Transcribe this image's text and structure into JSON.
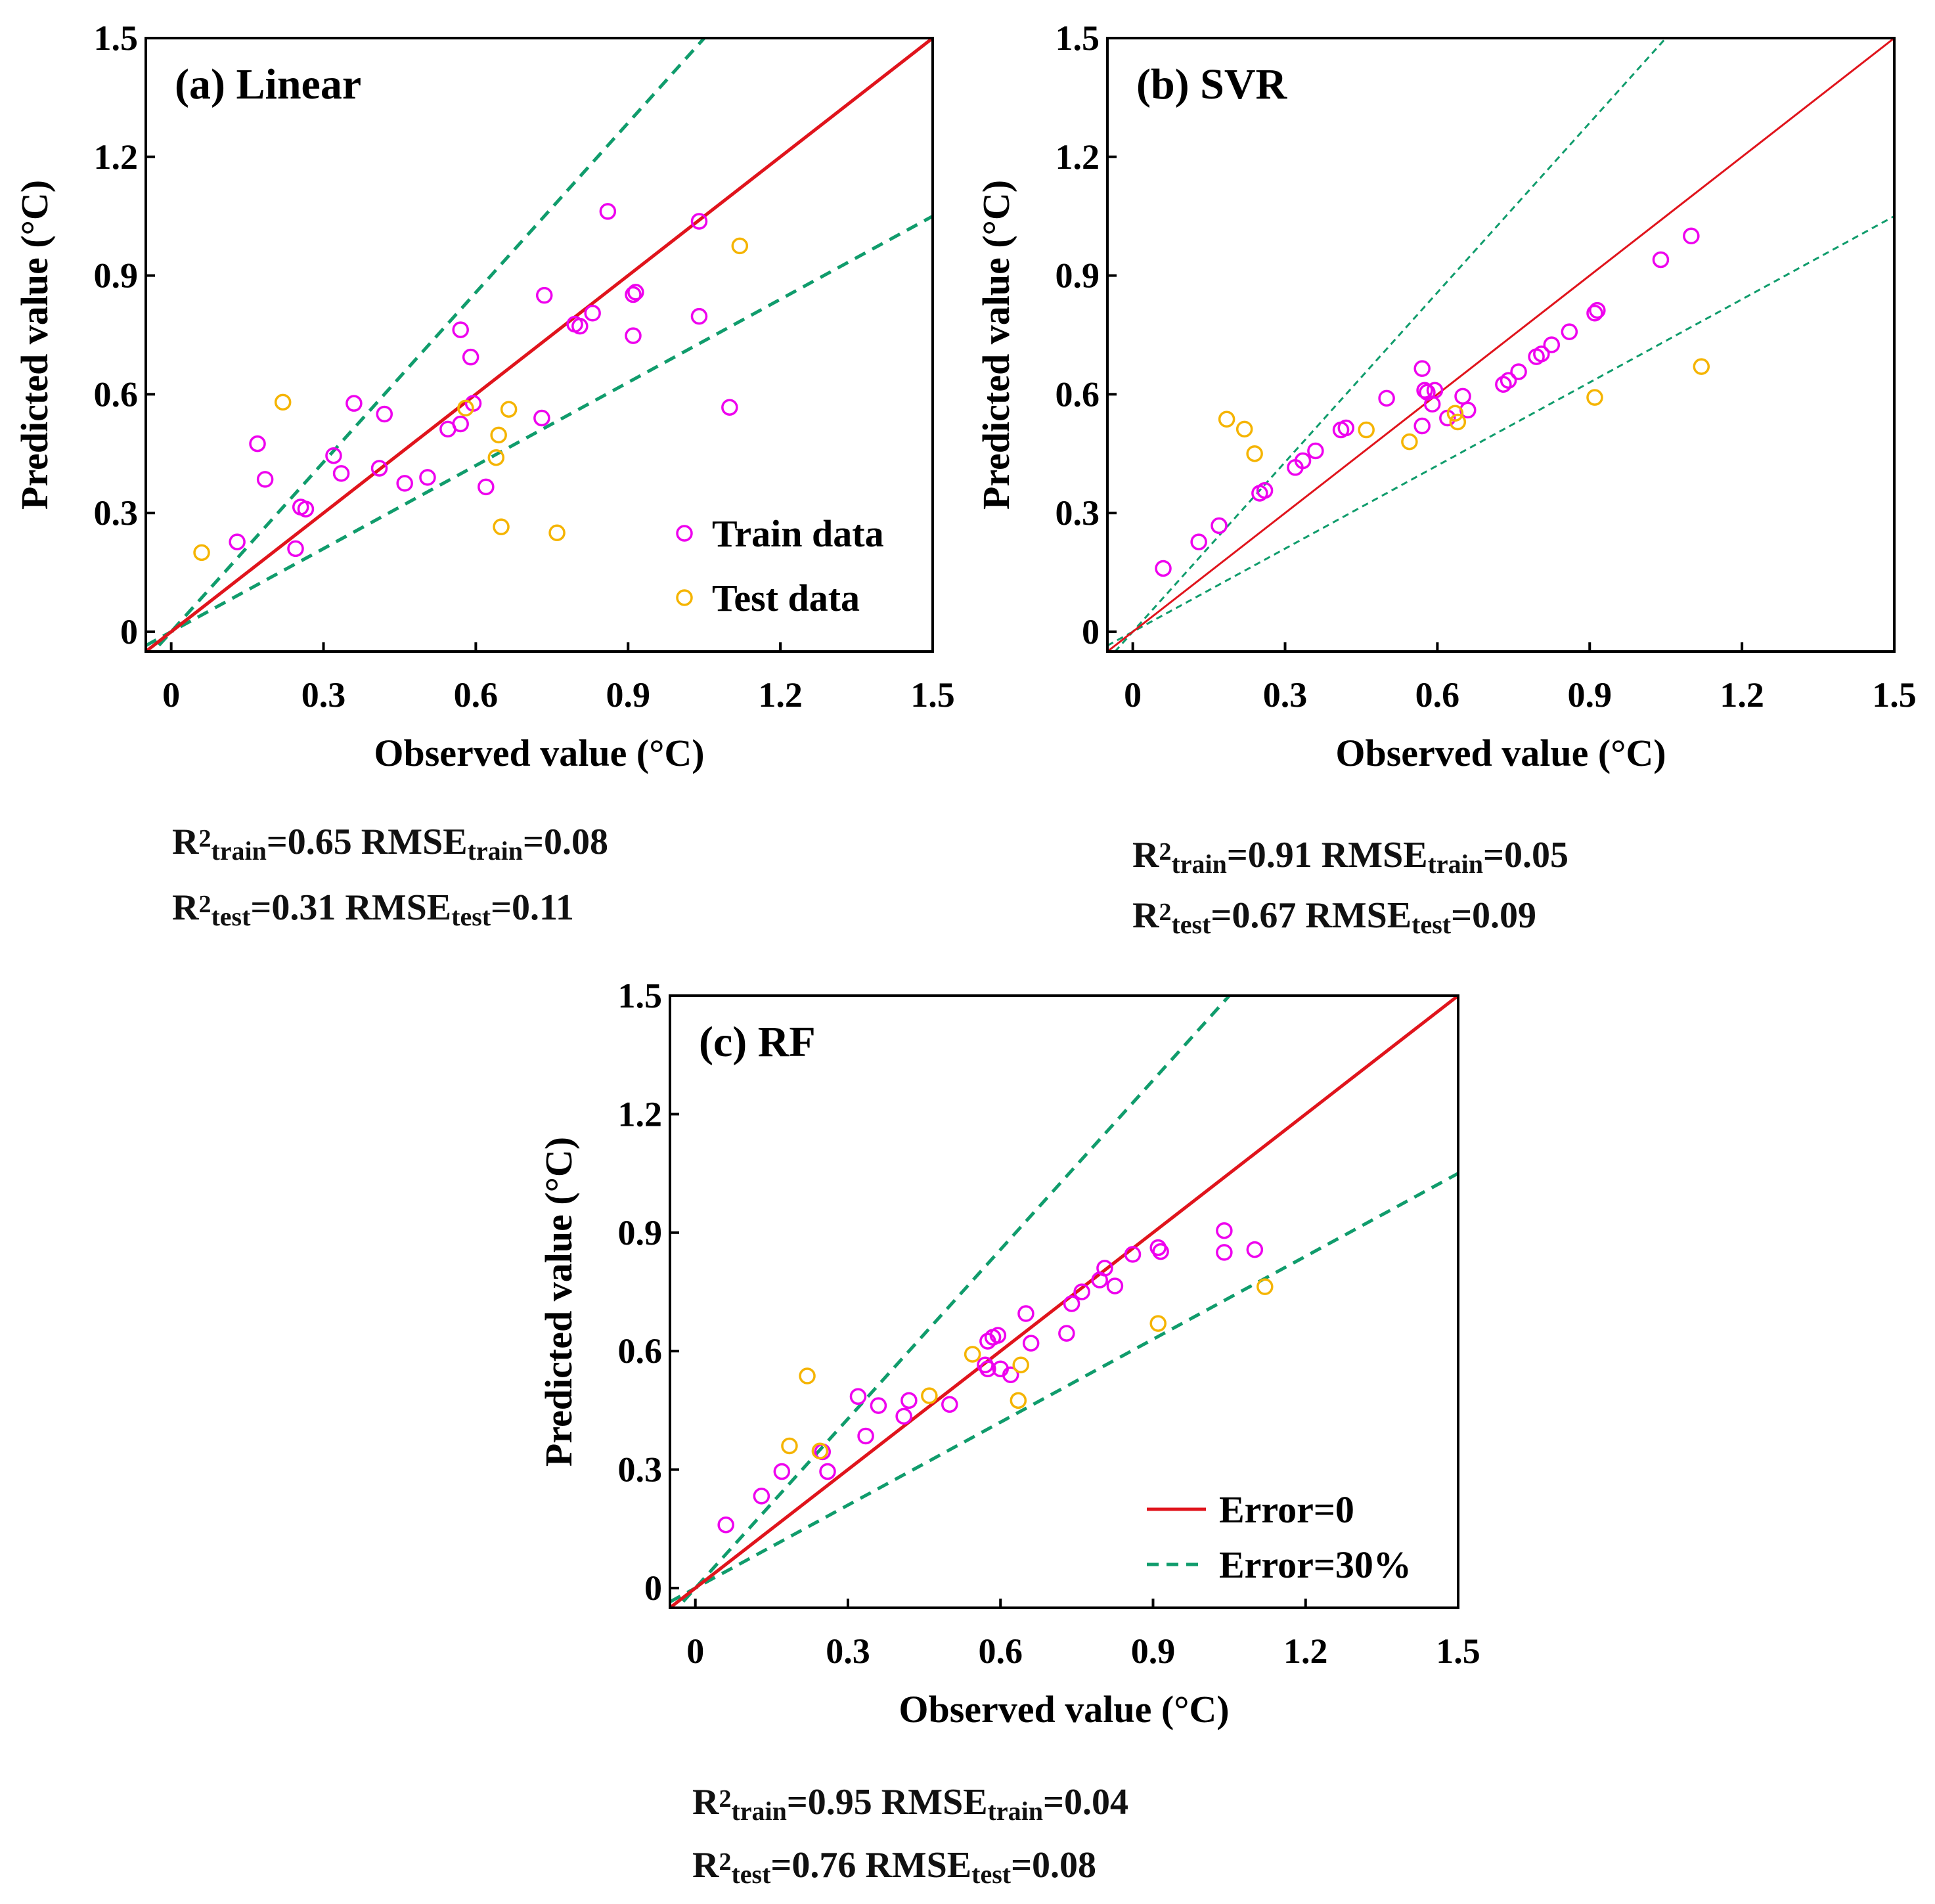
{
  "colors": {
    "train": "#ee00ee",
    "test": "#f5b400",
    "ideal_line": "#e0141c",
    "error_lines": "#109c6c",
    "axis": "#000000"
  },
  "legend_train": "Train data",
  "legend_test": "Test data",
  "legend_error0": "Error=0",
  "legend_error30": "Error=30%",
  "chart_data": [
    {
      "type": "scatter",
      "title": "(a) Linear",
      "xlabel": "Observed value (°C)",
      "ylabel": "Predicted value (°C)",
      "xlim": [
        -0.05,
        1.5
      ],
      "ylim": [
        -0.05,
        1.5
      ],
      "xticks": [
        "0",
        "0.3",
        "0.6",
        "0.9",
        "1.2",
        "1.5"
      ],
      "yticks": [
        "0",
        "0.3",
        "0.6",
        "0.9",
        "1.2",
        "1.5"
      ],
      "reference_lines": {
        "ideal_slope": 1,
        "upper_slope": 1.42857,
        "lower_slope": 0.7
      },
      "series": [
        {
          "name": "Train data",
          "color": "#ee00ee",
          "points": [
            [
              0.17,
              0.475
            ],
            [
              0.185,
              0.385
            ],
            [
              0.13,
              0.227
            ],
            [
              0.245,
              0.21
            ],
            [
              0.255,
              0.315
            ],
            [
              0.265,
              0.31
            ],
            [
              0.32,
              0.445
            ],
            [
              0.335,
              0.4
            ],
            [
              0.36,
              0.577
            ],
            [
              0.41,
              0.413
            ],
            [
              0.42,
              0.55
            ],
            [
              0.46,
              0.375
            ],
            [
              0.505,
              0.39
            ],
            [
              0.545,
              0.512
            ],
            [
              0.57,
              0.525
            ],
            [
              0.57,
              0.763
            ],
            [
              0.59,
              0.694
            ],
            [
              0.595,
              0.577
            ],
            [
              0.62,
              0.366
            ],
            [
              0.73,
              0.54
            ],
            [
              0.735,
              0.85
            ],
            [
              0.795,
              0.777
            ],
            [
              0.805,
              0.772
            ],
            [
              0.83,
              0.805
            ],
            [
              0.86,
              1.062
            ],
            [
              0.91,
              0.748
            ],
            [
              0.91,
              0.852
            ],
            [
              0.915,
              0.858
            ],
            [
              1.04,
              1.037
            ],
            [
              1.04,
              0.797
            ],
            [
              1.1,
              0.567
            ]
          ]
        },
        {
          "name": "Test data",
          "color": "#f5b400",
          "points": [
            [
              0.06,
              0.2
            ],
            [
              0.22,
              0.58
            ],
            [
              0.58,
              0.565
            ],
            [
              0.64,
              0.44
            ],
            [
              0.645,
              0.497
            ],
            [
              0.65,
              0.265
            ],
            [
              0.665,
              0.562
            ],
            [
              0.76,
              0.25
            ],
            [
              1.12,
              0.975
            ]
          ]
        }
      ],
      "metrics": {
        "train": {
          "r2": "0.65",
          "rmse": "0.08"
        },
        "test": {
          "r2": "0.31",
          "rmse": "0.11"
        }
      }
    },
    {
      "type": "scatter",
      "title": "(b) SVR",
      "xlabel": "Observed value (°C)",
      "ylabel": "Predicted value (°C)",
      "xlim": [
        -0.05,
        1.5
      ],
      "ylim": [
        -0.05,
        1.5
      ],
      "xticks": [
        "0",
        "0.3",
        "0.6",
        "0.9",
        "1.2",
        "1.5"
      ],
      "yticks": [
        "0",
        "0.3",
        "0.6",
        "0.9",
        "1.2",
        "1.5"
      ],
      "reference_lines": {
        "ideal_slope": 1,
        "upper_slope": 1.42857,
        "lower_slope": 0.7
      },
      "series": [
        {
          "name": "Train data",
          "color": "#ee00ee",
          "points": [
            [
              0.06,
              0.16
            ],
            [
              0.13,
              0.227
            ],
            [
              0.17,
              0.268
            ],
            [
              0.25,
              0.35
            ],
            [
              0.26,
              0.357
            ],
            [
              0.32,
              0.415
            ],
            [
              0.335,
              0.432
            ],
            [
              0.36,
              0.457
            ],
            [
              0.41,
              0.51
            ],
            [
              0.42,
              0.515
            ],
            [
              0.5,
              0.59
            ],
            [
              0.57,
              0.52
            ],
            [
              0.57,
              0.665
            ],
            [
              0.575,
              0.61
            ],
            [
              0.58,
              0.605
            ],
            [
              0.59,
              0.575
            ],
            [
              0.595,
              0.61
            ],
            [
              0.62,
              0.54
            ],
            [
              0.65,
              0.595
            ],
            [
              0.66,
              0.56
            ],
            [
              0.73,
              0.625
            ],
            [
              0.74,
              0.635
            ],
            [
              0.76,
              0.657
            ],
            [
              0.795,
              0.695
            ],
            [
              0.805,
              0.702
            ],
            [
              0.825,
              0.725
            ],
            [
              0.86,
              0.758
            ],
            [
              0.91,
              0.805
            ],
            [
              0.915,
              0.812
            ],
            [
              1.04,
              0.94
            ],
            [
              1.1,
              1.0
            ]
          ]
        },
        {
          "name": "Test data",
          "color": "#f5b400",
          "points": [
            [
              0.185,
              0.537
            ],
            [
              0.22,
              0.512
            ],
            [
              0.24,
              0.45
            ],
            [
              0.46,
              0.51
            ],
            [
              0.545,
              0.48
            ],
            [
              0.635,
              0.552
            ],
            [
              0.64,
              0.53
            ],
            [
              0.91,
              0.592
            ],
            [
              1.12,
              0.67
            ]
          ]
        }
      ],
      "metrics": {
        "train": {
          "r2": "0.91",
          "rmse": "0.05"
        },
        "test": {
          "r2": "0.67",
          "rmse": "0.09"
        }
      }
    },
    {
      "type": "scatter",
      "title": "(c) RF",
      "xlabel": "Observed value (°C)",
      "ylabel": "Predicted value (°C)",
      "xlim": [
        -0.05,
        1.5
      ],
      "ylim": [
        -0.05,
        1.5
      ],
      "xticks": [
        "0",
        "0.3",
        "0.6",
        "0.9",
        "1.2",
        "1.5"
      ],
      "yticks": [
        "0",
        "0.3",
        "0.6",
        "0.9",
        "1.2",
        "1.5"
      ],
      "reference_lines": {
        "ideal_slope": 1,
        "upper_slope": 1.42857,
        "lower_slope": 0.7
      },
      "series": [
        {
          "name": "Train data",
          "color": "#ee00ee",
          "points": [
            [
              0.06,
              0.16
            ],
            [
              0.13,
              0.233
            ],
            [
              0.17,
              0.295
            ],
            [
              0.25,
              0.345
            ],
            [
              0.26,
              0.295
            ],
            [
              0.32,
              0.485
            ],
            [
              0.335,
              0.385
            ],
            [
              0.36,
              0.462
            ],
            [
              0.41,
              0.435
            ],
            [
              0.42,
              0.475
            ],
            [
              0.5,
              0.465
            ],
            [
              0.57,
              0.565
            ],
            [
              0.575,
              0.555
            ],
            [
              0.575,
              0.625
            ],
            [
              0.585,
              0.635
            ],
            [
              0.595,
              0.64
            ],
            [
              0.6,
              0.555
            ],
            [
              0.62,
              0.54
            ],
            [
              0.65,
              0.695
            ],
            [
              0.66,
              0.62
            ],
            [
              0.73,
              0.645
            ],
            [
              0.74,
              0.72
            ],
            [
              0.76,
              0.75
            ],
            [
              0.795,
              0.78
            ],
            [
              0.805,
              0.81
            ],
            [
              0.825,
              0.765
            ],
            [
              0.86,
              0.845
            ],
            [
              0.91,
              0.862
            ],
            [
              0.915,
              0.852
            ],
            [
              1.04,
              0.905
            ],
            [
              1.04,
              0.85
            ],
            [
              1.1,
              0.857
            ]
          ]
        },
        {
          "name": "Test data",
          "color": "#f5b400",
          "points": [
            [
              0.185,
              0.36
            ],
            [
              0.22,
              0.537
            ],
            [
              0.245,
              0.347
            ],
            [
              0.46,
              0.487
            ],
            [
              0.545,
              0.592
            ],
            [
              0.635,
              0.475
            ],
            [
              0.64,
              0.565
            ],
            [
              0.91,
              0.67
            ],
            [
              1.12,
              0.763
            ]
          ]
        }
      ],
      "metrics": {
        "train": {
          "r2": "0.95",
          "rmse": "0.04"
        },
        "test": {
          "r2": "0.76",
          "rmse": "0.08"
        }
      }
    }
  ]
}
